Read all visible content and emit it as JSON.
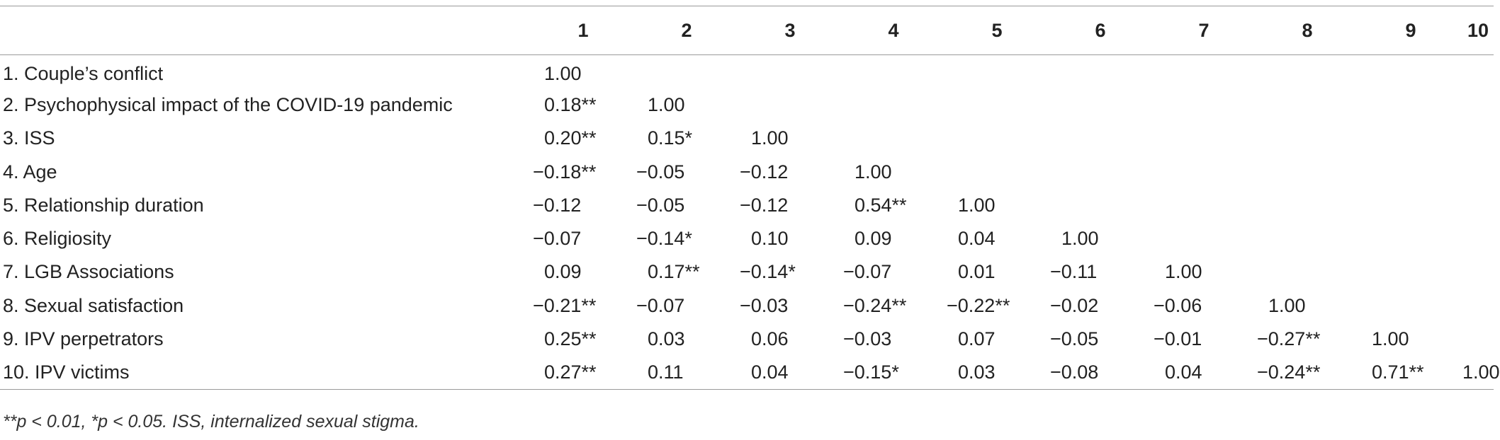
{
  "table": {
    "columns": [
      "",
      "1",
      "2",
      "3",
      "4",
      "5",
      "6",
      "7",
      "8",
      "9",
      "10"
    ],
    "rows": [
      {
        "label": "1. Couple’s conflict",
        "values": [
          "1.00",
          "",
          "",
          "",
          "",
          "",
          "",
          "",
          "",
          ""
        ]
      },
      {
        "label": "2. Psychophysical impact of the COVID-19 pandemic",
        "values": [
          "0.18**",
          "1.00",
          "",
          "",
          "",
          "",
          "",
          "",
          "",
          ""
        ]
      },
      {
        "label": "3. ISS",
        "values": [
          "0.20**",
          "0.15*",
          "1.00",
          "",
          "",
          "",
          "",
          "",
          "",
          ""
        ]
      },
      {
        "label": "4. Age",
        "values": [
          "−0.18**",
          "−0.05",
          "−0.12",
          "1.00",
          "",
          "",
          "",
          "",
          "",
          ""
        ]
      },
      {
        "label": "5. Relationship duration",
        "values": [
          "−0.12",
          "−0.05",
          "−0.12",
          "0.54**",
          "1.00",
          "",
          "",
          "",
          "",
          ""
        ]
      },
      {
        "label": "6. Religiosity",
        "values": [
          "−0.07",
          "−0.14*",
          "0.10",
          "0.09",
          "0.04",
          "1.00",
          "",
          "",
          "",
          ""
        ]
      },
      {
        "label": "7. LGB Associations",
        "values": [
          "0.09",
          "0.17**",
          "−0.14*",
          "−0.07",
          "0.01",
          "−0.11",
          "1.00",
          "",
          "",
          ""
        ]
      },
      {
        "label": "8. Sexual satisfaction",
        "values": [
          "−0.21**",
          "−0.07",
          "−0.03",
          "−0.24**",
          "−0.22**",
          "−0.02",
          "−0.06",
          "1.00",
          "",
          ""
        ]
      },
      {
        "label": "9. IPV perpetrators",
        "values": [
          "0.25**",
          "0.03",
          "0.06",
          "−0.03",
          "0.07",
          "−0.05",
          "−0.01",
          "−0.27**",
          "1.00",
          ""
        ]
      },
      {
        "label": "10. IPV victims",
        "values": [
          "0.27**",
          "0.11",
          "0.04",
          "−0.15*",
          "0.03",
          "−0.08",
          "0.04",
          "−0.24**",
          "0.71**",
          "1.00"
        ]
      }
    ]
  },
  "footnote": "**p < 0.01, *p < 0.05. ISS, internalized sexual stigma."
}
